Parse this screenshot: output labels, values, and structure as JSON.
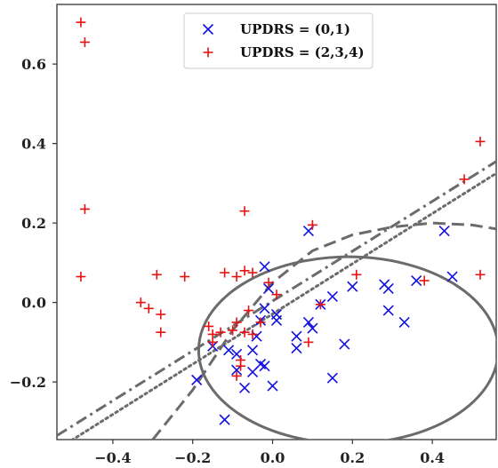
{
  "chart_data": {
    "type": "scatter",
    "xlim": [
      -0.54,
      0.56
    ],
    "ylim": [
      -0.345,
      0.75
    ],
    "xticks": [
      -0.4,
      -0.2,
      0.0,
      0.2,
      0.4
    ],
    "xtick_labels": [
      "−0.4",
      "−0.2",
      "0.0",
      "0.2",
      "0.4"
    ],
    "yticks": [
      -0.2,
      0.0,
      0.2,
      0.4,
      0.6
    ],
    "ytick_labels": [
      "−0.2",
      "0.0",
      "0.2",
      "0.4",
      "0.6"
    ],
    "grid": false,
    "legend_position": "top-center",
    "series": [
      {
        "name": "UPDRS = (0,1)",
        "marker": "x",
        "color": "#1010e0",
        "points": [
          [
            -0.19,
            -0.195
          ],
          [
            -0.15,
            -0.11
          ],
          [
            -0.12,
            -0.295
          ],
          [
            -0.11,
            -0.12
          ],
          [
            -0.09,
            -0.13
          ],
          [
            -0.09,
            -0.17
          ],
          [
            -0.07,
            -0.215
          ],
          [
            -0.05,
            -0.12
          ],
          [
            -0.04,
            -0.085
          ],
          [
            -0.03,
            -0.155
          ],
          [
            -0.02,
            -0.16
          ],
          [
            -0.02,
            0.09
          ],
          [
            -0.01,
            0.035
          ],
          [
            -0.02,
            -0.015
          ],
          [
            0.0,
            -0.21
          ],
          [
            0.01,
            -0.03
          ],
          [
            0.01,
            -0.045
          ],
          [
            0.06,
            -0.085
          ],
          [
            0.06,
            -0.115
          ],
          [
            0.09,
            0.18
          ],
          [
            0.09,
            -0.05
          ],
          [
            0.1,
            -0.065
          ],
          [
            0.12,
            -0.005
          ],
          [
            0.15,
            -0.19
          ],
          [
            0.15,
            0.015
          ],
          [
            0.18,
            -0.105
          ],
          [
            0.2,
            0.04
          ],
          [
            0.28,
            0.045
          ],
          [
            0.29,
            0.035
          ],
          [
            0.29,
            -0.02
          ],
          [
            0.33,
            -0.05
          ],
          [
            0.36,
            0.055
          ],
          [
            0.43,
            0.18
          ],
          [
            0.45,
            0.065
          ],
          [
            -0.05,
            -0.175
          ],
          [
            -0.03,
            -0.045
          ]
        ]
      },
      {
        "name": "UPDRS = (2,3,4)",
        "marker": "+",
        "color": "#e81010",
        "points": [
          [
            -0.48,
            0.705
          ],
          [
            -0.47,
            0.655
          ],
          [
            -0.47,
            0.235
          ],
          [
            -0.48,
            0.065
          ],
          [
            -0.33,
            0.0
          ],
          [
            -0.31,
            -0.015
          ],
          [
            -0.29,
            0.07
          ],
          [
            -0.28,
            -0.03
          ],
          [
            -0.28,
            -0.075
          ],
          [
            -0.22,
            0.065
          ],
          [
            -0.16,
            -0.06
          ],
          [
            -0.15,
            -0.08
          ],
          [
            -0.15,
            -0.1
          ],
          [
            -0.13,
            -0.075
          ],
          [
            -0.12,
            0.075
          ],
          [
            -0.1,
            -0.07
          ],
          [
            -0.09,
            -0.05
          ],
          [
            -0.09,
            0.065
          ],
          [
            -0.08,
            -0.145
          ],
          [
            -0.08,
            -0.16
          ],
          [
            -0.09,
            -0.185
          ],
          [
            -0.07,
            0.23
          ],
          [
            -0.07,
            0.08
          ],
          [
            -0.07,
            -0.075
          ],
          [
            -0.05,
            0.075
          ],
          [
            -0.05,
            -0.08
          ],
          [
            -0.03,
            -0.05
          ],
          [
            -0.01,
            0.05
          ],
          [
            0.01,
            0.02
          ],
          [
            0.09,
            -0.1
          ],
          [
            0.1,
            0.195
          ],
          [
            0.12,
            -0.005
          ],
          [
            0.21,
            0.07
          ],
          [
            0.38,
            0.055
          ],
          [
            0.48,
            0.31
          ],
          [
            0.52,
            0.405
          ],
          [
            0.52,
            0.07
          ],
          [
            -0.06,
            -0.02
          ]
        ]
      }
    ],
    "curves": [
      {
        "style": "solid",
        "kind": "ellipse",
        "center": [
          0.19,
          -0.12
        ],
        "rx": 0.375,
        "ry": 0.235,
        "color": "#6b6b6b"
      },
      {
        "style": "dashed",
        "kind": "polyline",
        "color": "#6b6b6b",
        "points": [
          [
            -0.3,
            -0.345
          ],
          [
            -0.2,
            -0.22
          ],
          [
            -0.1,
            -0.07
          ],
          [
            0.0,
            0.05
          ],
          [
            0.1,
            0.13
          ],
          [
            0.2,
            0.17
          ],
          [
            0.3,
            0.19
          ],
          [
            0.4,
            0.2
          ],
          [
            0.5,
            0.195
          ],
          [
            0.56,
            0.185
          ]
        ]
      },
      {
        "style": "dashdot",
        "kind": "line",
        "color": "#6b6b6b",
        "points": [
          [
            -0.54,
            -0.335
          ],
          [
            0.56,
            0.355
          ]
        ]
      },
      {
        "style": "dotted",
        "kind": "line",
        "color": "#6b6b6b",
        "points": [
          [
            -0.54,
            -0.37
          ],
          [
            0.56,
            0.325
          ]
        ]
      }
    ]
  }
}
